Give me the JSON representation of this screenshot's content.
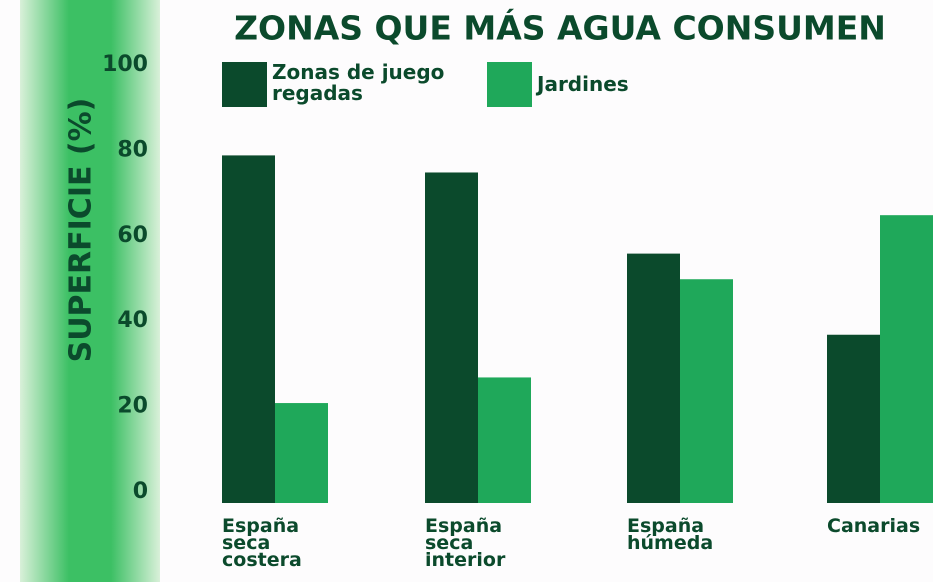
{
  "chart_data": {
    "type": "bar",
    "title": "ZONAS QUE MÁS AGUA CONSUMEN",
    "y_label": "SUPERFICIE (%)",
    "categories": [
      "España seca costera",
      "España seca interior",
      "España húmeda",
      "Canarias"
    ],
    "series": [
      {
        "name": "Zonas de juego regadas",
        "color": "#0b4a2c",
        "values": [
          80,
          76,
          57,
          38
        ]
      },
      {
        "name": "Jardines",
        "color": "#1fa85a",
        "values": [
          22,
          28,
          51,
          66
        ]
      }
    ],
    "ylim": [
      0,
      100
    ],
    "yticks": [
      0,
      20,
      40,
      60,
      80,
      100
    ],
    "grid": false
  }
}
